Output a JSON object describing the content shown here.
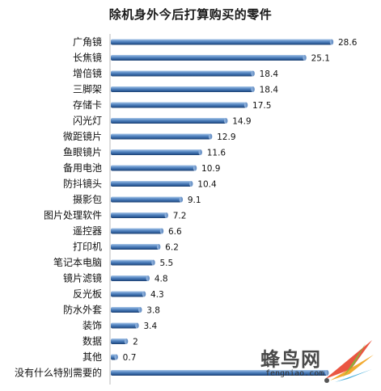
{
  "chart_data": {
    "type": "bar",
    "orientation": "horizontal",
    "title": "除机身外今后打算购买的零件",
    "categories": [
      "广角镜",
      "长焦镜",
      "增倍镜",
      "三脚架",
      "存储卡",
      "闪光灯",
      "微距镜片",
      "鱼眼镜片",
      "备用电池",
      "防抖镜头",
      "摄影包",
      "图片处理软件",
      "遥控器",
      "打印机",
      "笔记本电脑",
      "镜片滤镜",
      "反光板",
      "防水外套",
      "装饰",
      "数据",
      "其他",
      "没有什么特别需要的"
    ],
    "values": [
      28.6,
      25.1,
      18.4,
      18.4,
      17.5,
      14.9,
      12.9,
      11.6,
      10.9,
      10.4,
      9.1,
      7.2,
      6.6,
      6.2,
      5.5,
      4.8,
      4.3,
      3.8,
      3.4,
      2,
      0.7,
      28
    ],
    "value_labels": [
      "28.6",
      "25.1",
      "18.4",
      "18.4",
      "17.5",
      "14.9",
      "12.9",
      "11.6",
      "10.9",
      "10.4",
      "9.1",
      "7.2",
      "6.6",
      "6.2",
      "5.5",
      "4.8",
      "4.3",
      "3.8",
      "3.4",
      "2",
      "0.7",
      ""
    ],
    "xlim": [
      0,
      30
    ],
    "grid": false,
    "legend": "none",
    "bar_color": "#3a6ea8"
  },
  "watermark": {
    "brand_cn": "蜂鸟网",
    "url": "fengniao.com"
  }
}
